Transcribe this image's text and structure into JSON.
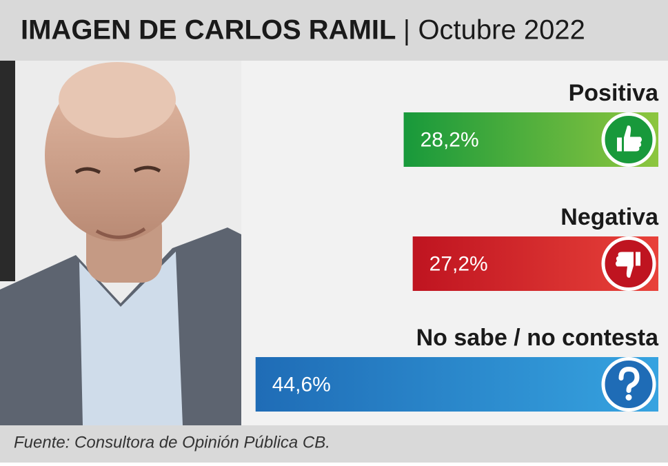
{
  "chart_data": {
    "type": "hbar",
    "title": "IMAGEN DE CARLOS RAMIL",
    "subtitle": "Octubre 2022",
    "categories": [
      "Positiva",
      "Negativa",
      "No sabe / no contesta"
    ],
    "values": [
      28.2,
      27.2,
      44.6
    ],
    "value_labels": [
      "28,2%",
      "27,2%",
      "44,6%"
    ],
    "colors": [
      [
        "#18993b",
        "#8dc63f"
      ],
      [
        "#bf1420",
        "#e8423a"
      ],
      [
        "#1f6cb6",
        "#36a3e0"
      ]
    ],
    "icons": [
      "thumbs-up",
      "thumbs-down",
      "question"
    ],
    "source": "Fuente: Consultora de Opinión Pública CB."
  }
}
